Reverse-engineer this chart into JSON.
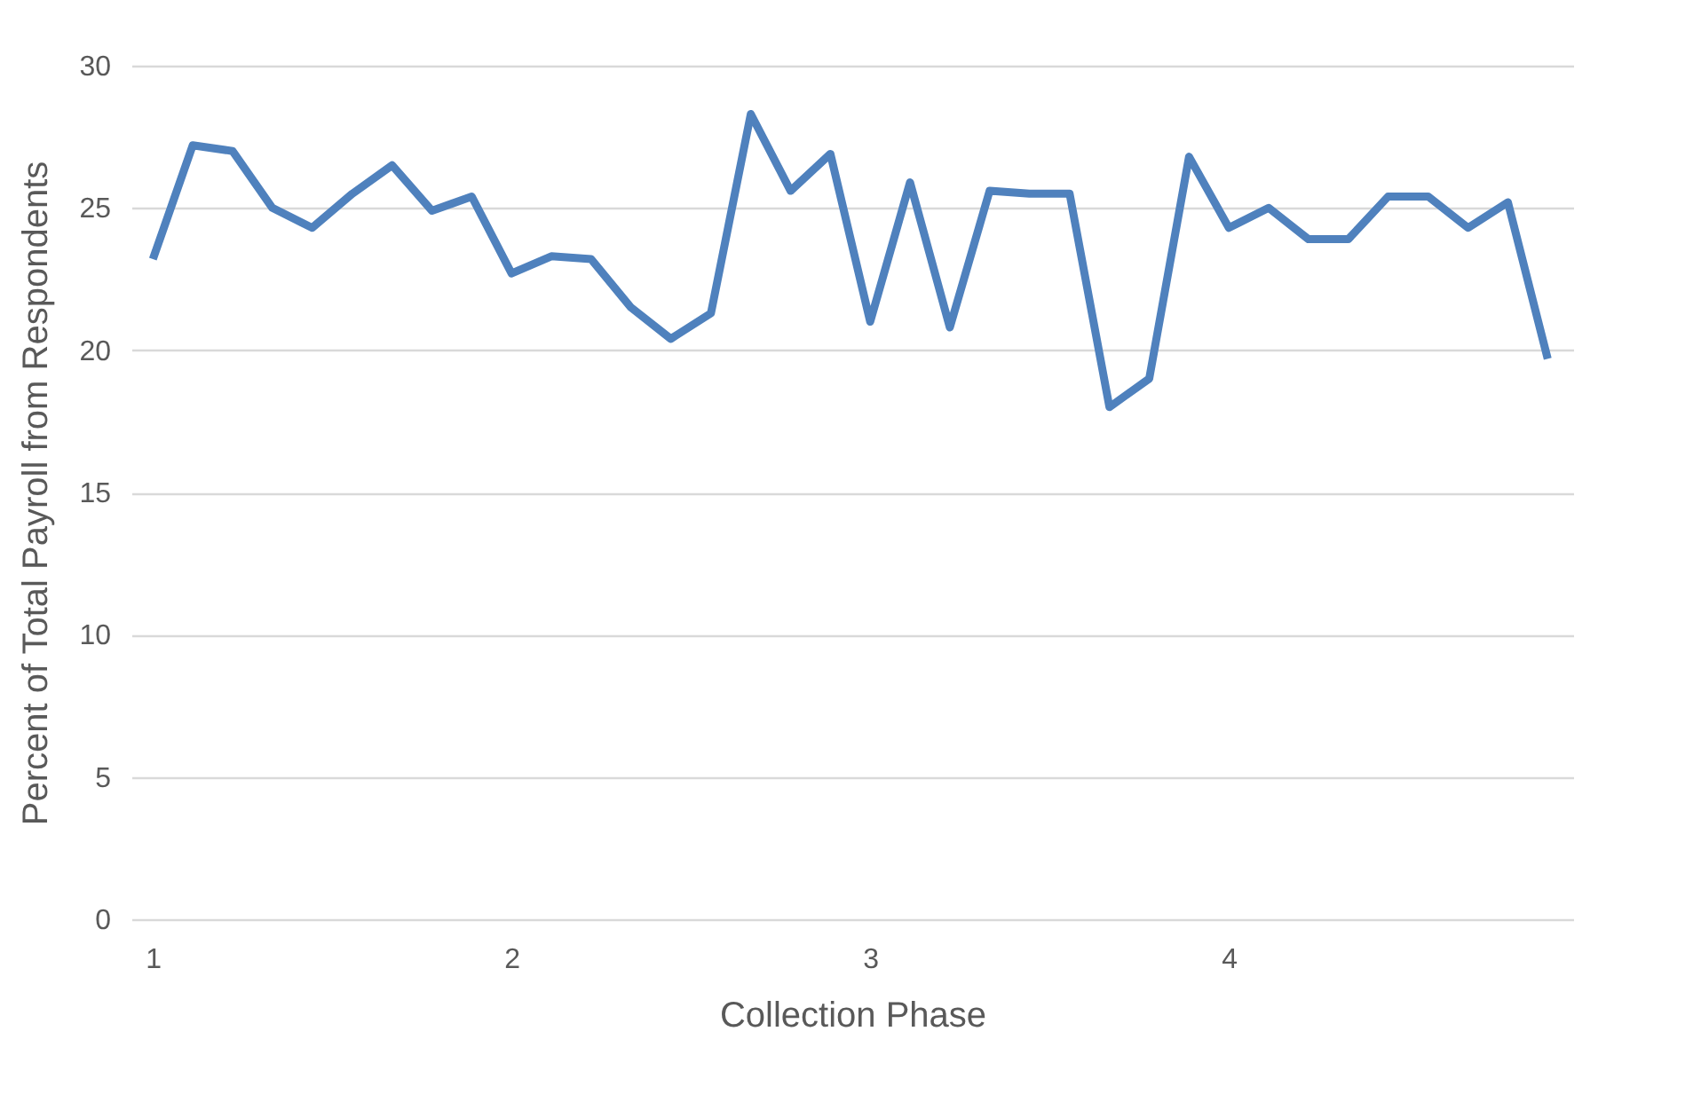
{
  "chart_data": {
    "type": "line",
    "xlabel": "Collection Phase",
    "ylabel": "Percent of Total Payroll from Respondents",
    "x": [
      1,
      1.111,
      1.222,
      1.333,
      1.444,
      1.556,
      1.667,
      1.778,
      1.889,
      2,
      2.111,
      2.222,
      2.333,
      2.444,
      2.556,
      2.667,
      2.778,
      2.889,
      3,
      3.111,
      3.222,
      3.333,
      3.444,
      3.556,
      3.667,
      3.778,
      3.889,
      4,
      4.111,
      4.222,
      4.333,
      4.444,
      4.556,
      4.667,
      4.778,
      4.889
    ],
    "series": [
      {
        "color": "#4f81bd",
        "values": [
          23.2,
          27.2,
          27.0,
          25.0,
          24.3,
          25.5,
          26.5,
          24.9,
          25.4,
          22.7,
          23.3,
          23.2,
          21.5,
          20.4,
          21.3,
          28.3,
          25.6,
          26.9,
          21.0,
          25.9,
          20.8,
          25.6,
          25.5,
          25.5,
          18.0,
          19.0,
          26.8,
          24.3,
          25.0,
          23.9,
          23.9,
          25.4,
          25.4,
          24.3,
          25.2,
          19.7
        ]
      }
    ],
    "xlim": [
      0.94,
      4.96
    ],
    "xticks": [
      1,
      2,
      3,
      4
    ],
    "ylim": [
      0,
      30
    ],
    "yticks": [
      0,
      5,
      10,
      15,
      20,
      25,
      30
    ],
    "grid": "y",
    "legend": false,
    "marker": "none",
    "line_style": "solid"
  }
}
